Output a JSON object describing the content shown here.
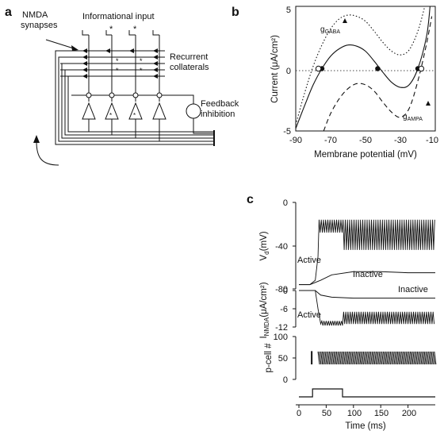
{
  "panel_a": {
    "label": "a",
    "nmda_synapses_1": "NMDA",
    "nmda_synapses_2": "synapses",
    "informational_input": "Informational input",
    "recurrent_1": "Recurrent",
    "recurrent_2": "collaterals",
    "feedback_1": "Feedback",
    "feedback_2": "inhibition",
    "star": "*"
  },
  "panel_b": {
    "label": "b",
    "ylabel": "Current (μA/cm²)",
    "xlabel": "Membrane potential (mV)",
    "g_gaba": "g",
    "g_gaba_sub": "GABA",
    "g_ampa": "g",
    "g_ampa_sub": "AMPA",
    "yticks": [
      "5",
      "0",
      "-5"
    ],
    "xticks": [
      "-90",
      "-70",
      "-50",
      "-30",
      "-10"
    ]
  },
  "panel_c": {
    "label": "c",
    "xlabel": "Time (ms)",
    "xticks": [
      "0",
      "50",
      "100",
      "150",
      "200"
    ],
    "vd_label": "V",
    "vd_sub": "d",
    "vd_unit": "(mV)",
    "vd_yticks": [
      "0",
      "-40",
      "-80"
    ],
    "vd_active": "Active",
    "vd_inactive": "Inactive",
    "inmda_label": "I",
    "inmda_sub": "NMDA",
    "inmda_unit": "(μA/cm²)",
    "inmda_yticks": [
      "0",
      "-6",
      "-12"
    ],
    "inmda_active": "Active",
    "inmda_inactive": "Inactive",
    "pcell_label": "p-cell #",
    "pcell_yticks": [
      "100",
      "50",
      "0"
    ]
  },
  "chart_data": [
    {
      "type": "line",
      "title": "",
      "xlabel": "Membrane potential (mV)",
      "ylabel": "Current (μA/cm²)",
      "xlim": [
        -90,
        -10
      ],
      "ylim": [
        -5,
        5
      ],
      "series": [
        {
          "name": "",
          "style": "solid",
          "x": [
            -90,
            -85,
            -80,
            -75,
            -70,
            -65,
            -60,
            -55,
            -50,
            -45,
            -40,
            -35,
            -30,
            -25,
            -20,
            -15,
            -13
          ],
          "y": [
            -4.8,
            -3.0,
            -1.3,
            0.0,
            1.0,
            1.6,
            1.9,
            1.8,
            1.4,
            0.6,
            -0.3,
            -1.1,
            -1.5,
            -1.3,
            0.0,
            2.6,
            5.0
          ]
        },
        {
          "name": "g_GABA",
          "style": "dotted",
          "x": [
            -90,
            -85,
            -80,
            -75,
            -70,
            -65,
            -60,
            -55,
            -50,
            -45,
            -40,
            -35,
            -30,
            -25,
            -20,
            -16
          ],
          "y": [
            -4.5,
            -2.0,
            0.2,
            1.9,
            3.2,
            4.0,
            4.3,
            4.2,
            3.8,
            3.0,
            2.1,
            1.4,
            1.1,
            1.5,
            3.0,
            5.0
          ]
        },
        {
          "name": "g_AMPA",
          "style": "dashed",
          "x": [
            -74,
            -70,
            -65,
            -60,
            -55,
            -50,
            -45,
            -40,
            -35,
            -30,
            -25,
            -20,
            -15,
            -12
          ],
          "y": [
            -5.0,
            -3.6,
            -2.4,
            -1.6,
            -1.2,
            -1.3,
            -1.8,
            -2.7,
            -3.5,
            -3.9,
            -3.2,
            -1.0,
            2.0,
            4.2
          ]
        }
      ],
      "fixed_points": [
        -75,
        -43,
        -20
      ]
    },
    {
      "type": "line",
      "title": "",
      "xlabel": "Time (ms)",
      "ylabel": "Vd (mV)",
      "xlim": [
        0,
        250
      ],
      "ylim": [
        -80,
        0
      ],
      "series": [
        {
          "name": "Active",
          "x": [
            0,
            20,
            30,
            35,
            40,
            80,
            250
          ],
          "y": [
            -76,
            -76,
            -72,
            -60,
            -16,
            -40,
            -40
          ],
          "note": "oscillates between about -16 and -44 mV after 35 ms"
        },
        {
          "name": "Inactive",
          "x": [
            0,
            20,
            40,
            60,
            100,
            150,
            200,
            250
          ],
          "y": [
            -76,
            -76,
            -72,
            -67,
            -64,
            -64,
            -65,
            -65
          ]
        }
      ]
    },
    {
      "type": "line",
      "title": "",
      "xlabel": "Time (ms)",
      "ylabel": "I_NMDA (μA/cm²)",
      "xlim": [
        0,
        250
      ],
      "ylim": [
        -12,
        0
      ],
      "series": [
        {
          "name": "Active",
          "x": [
            0,
            30,
            35,
            40,
            80,
            250
          ],
          "y": [
            0,
            0,
            -6,
            -11,
            -9,
            -9
          ],
          "note": "oscillates between about -7 and -11 after 40 ms"
        },
        {
          "name": "Inactive",
          "x": [
            0,
            30,
            40,
            60,
            100,
            250
          ],
          "y": [
            0,
            0,
            -1.5,
            -2.2,
            -2.5,
            -2.5
          ]
        }
      ]
    },
    {
      "type": "scatter",
      "title": "",
      "xlabel": "Time (ms)",
      "ylabel": "p-cell #",
      "xlim": [
        0,
        250
      ],
      "ylim": [
        0,
        100
      ],
      "series": [
        {
          "name": "",
          "x_start": 35,
          "x_end": 250,
          "y_range": [
            35,
            65
          ]
        }
      ]
    },
    {
      "type": "line",
      "title": "",
      "xlabel": "Time (ms)",
      "ylabel": "",
      "xlim": [
        0,
        250
      ],
      "series": [
        {
          "name": "",
          "x": [
            0,
            25,
            25,
            80,
            80,
            250
          ],
          "y": [
            0,
            0,
            1,
            1,
            0,
            0
          ]
        }
      ]
    }
  ]
}
